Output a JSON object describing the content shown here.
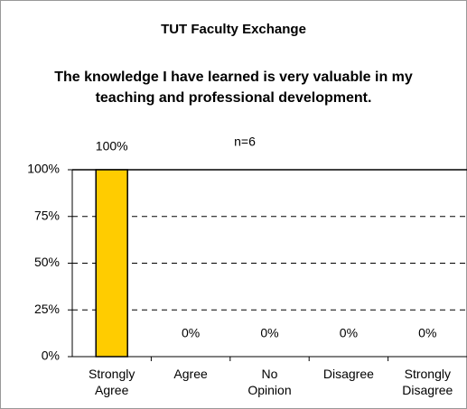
{
  "chart_data": {
    "type": "bar",
    "title": "TUT Faculty Exchange",
    "subtitle": "The knowledge I have learned is very valuable in my teaching and professional development.",
    "annotation": "n=6",
    "categories": [
      "Strongly Agree",
      "Agree",
      "No Opinion",
      "Disagree",
      "Strongly Disagree"
    ],
    "values": [
      100,
      0,
      0,
      0,
      0
    ],
    "value_labels": [
      "100%",
      "0%",
      "0%",
      "0%",
      "0%"
    ],
    "color": "#ffcc00",
    "ylim": [
      0,
      100
    ],
    "yticks": [
      {
        "value": 0,
        "label": "0%"
      },
      {
        "value": 25,
        "label": "25%"
      },
      {
        "value": 50,
        "label": "50%"
      },
      {
        "value": 75,
        "label": "75%"
      },
      {
        "value": 100,
        "label": "100%"
      }
    ],
    "grid": true
  }
}
